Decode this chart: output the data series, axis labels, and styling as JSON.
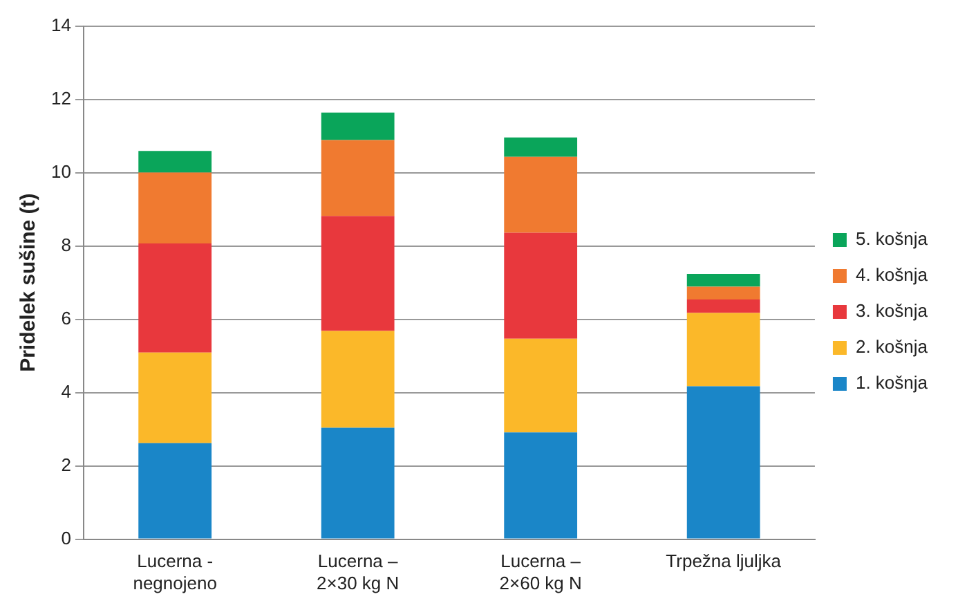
{
  "chart_data": {
    "type": "bar",
    "stacked": true,
    "ylabel": "Pridelek sušine (t)",
    "categories": [
      "Lucerna - negnojeno",
      "Lucerna – 2×30 kg N",
      "Lucerna – 2×60 kg N",
      "Trpežna ljuljka"
    ],
    "series": [
      {
        "name": "1. košnja",
        "color": "#1a86c8",
        "values": [
          2.62,
          3.04,
          2.91,
          4.17
        ]
      },
      {
        "name": "2. košnja",
        "color": "#fbb829",
        "values": [
          2.47,
          2.64,
          2.56,
          2.0
        ]
      },
      {
        "name": "3. košnja",
        "color": "#e8383d",
        "values": [
          2.98,
          3.14,
          2.89,
          0.37
        ]
      },
      {
        "name": "4. košnja",
        "color": "#f07a30",
        "values": [
          1.93,
          2.07,
          2.07,
          0.35
        ]
      },
      {
        "name": "5. košnja",
        "color": "#0aa55a",
        "values": [
          0.59,
          0.75,
          0.53,
          0.35
        ]
      }
    ],
    "ylim": [
      0,
      14
    ],
    "yticks": [
      0,
      2,
      4,
      6,
      8,
      10,
      12,
      14
    ],
    "grid": "y",
    "legend": "right"
  }
}
